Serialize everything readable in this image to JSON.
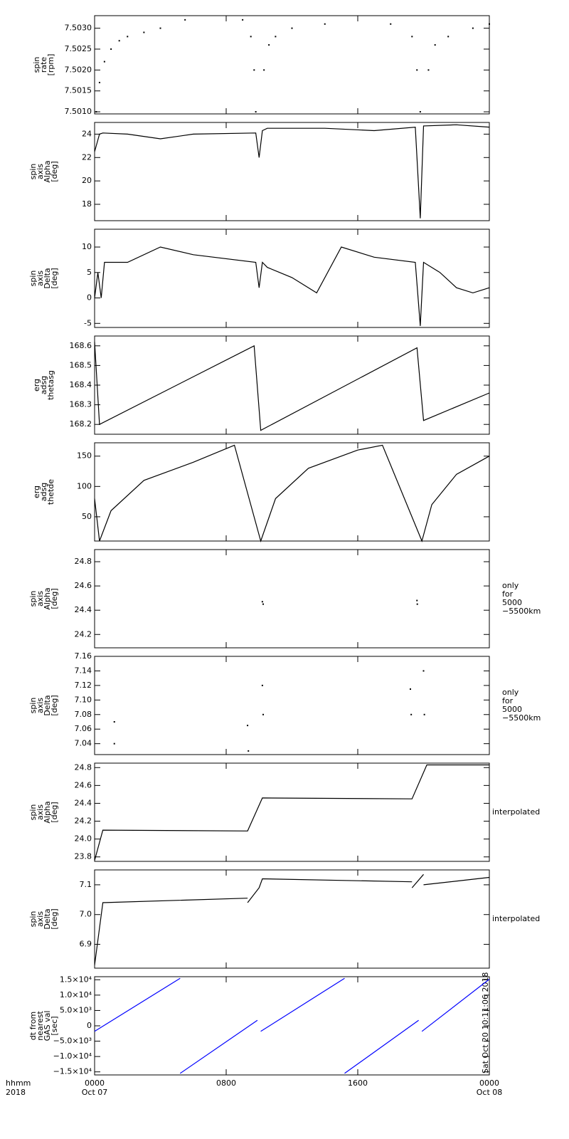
{
  "chart_data": [
    {
      "type": "scatter",
      "ylabel": [
        "spin",
        "rate",
        "[rpm]"
      ],
      "xlim": [
        0,
        24
      ],
      "xticks": [
        0,
        8,
        16,
        24
      ],
      "ylim": [
        7.50095,
        7.5033
      ],
      "yticks": [
        {
          "value": 7.501,
          "label": "7.5010"
        },
        {
          "value": 7.5015,
          "label": "7.5015"
        },
        {
          "value": 7.502,
          "label": "7.5020"
        },
        {
          "value": 7.5025,
          "label": "7.5025"
        },
        {
          "value": 7.503,
          "label": "7.5030"
        }
      ],
      "x": [
        0.1,
        0.3,
        0.6,
        1,
        1.5,
        2,
        3,
        4,
        5.5,
        9,
        9.5,
        9.7,
        9.8,
        10.3,
        10.6,
        11,
        12,
        14,
        18,
        19.3,
        19.6,
        19.8,
        20.3,
        20.7,
        21.5,
        23,
        24
      ],
      "series": [
        {
          "color": "#000000",
          "values": [
            7.501,
            7.5017,
            7.5022,
            7.5025,
            7.5027,
            7.5028,
            7.5029,
            7.503,
            7.5032,
            7.5032,
            7.5028,
            7.502,
            7.501,
            7.502,
            7.5026,
            7.5028,
            7.503,
            7.5031,
            7.5031,
            7.5028,
            7.502,
            7.501,
            7.502,
            7.5026,
            7.5028,
            7.503,
            7.5031
          ]
        }
      ]
    },
    {
      "type": "line",
      "ylabel": [
        "spin",
        "axis",
        "Alpha",
        "[deg]"
      ],
      "xlim": [
        0,
        24
      ],
      "xticks": [
        0,
        8,
        16,
        24
      ],
      "ylim": [
        16.6,
        25
      ],
      "yticks": [
        18,
        20,
        22,
        24
      ],
      "x": [
        0,
        0.3,
        0.5,
        2,
        4,
        6,
        9.8,
        10,
        10.2,
        10.5,
        14,
        17,
        19.5,
        19.8,
        20,
        22,
        24
      ],
      "series": [
        {
          "color": "#000000",
          "values": [
            22.5,
            24,
            24.1,
            24,
            23.6,
            24,
            24.1,
            22,
            24.3,
            24.5,
            24.5,
            24.3,
            24.6,
            16.8,
            24.7,
            24.8,
            24.6
          ]
        }
      ]
    },
    {
      "type": "line",
      "ylabel": [
        "spin",
        "axis",
        "Delta",
        "[deg]"
      ],
      "xlim": [
        0,
        24
      ],
      "xticks": [
        0,
        8,
        16,
        24
      ],
      "ylim": [
        -5.8,
        13.5
      ],
      "yticks": [
        -5,
        0,
        5,
        10
      ],
      "x": [
        0,
        0.2,
        0.4,
        0.6,
        2,
        4,
        6,
        9.8,
        10,
        10.2,
        10.5,
        12,
        13.5,
        15,
        17,
        19.5,
        19.8,
        20,
        21,
        22,
        23,
        24
      ],
      "series": [
        {
          "color": "#000000",
          "values": [
            0,
            5,
            0,
            7,
            7,
            10,
            8.5,
            7,
            2,
            7,
            6,
            4,
            1,
            10,
            8,
            7,
            -5.5,
            7,
            5,
            2,
            1,
            2
          ]
        }
      ]
    },
    {
      "type": "line",
      "ylabel": [
        "erg",
        "adsg",
        "thetasg"
      ],
      "xlim": [
        0,
        24
      ],
      "xticks": [
        0,
        8,
        16,
        24
      ],
      "ylim": [
        168.15,
        168.65
      ],
      "yticks": [
        168.2,
        168.3,
        168.4,
        168.5,
        168.6
      ],
      "x": [
        0,
        0.3,
        9.7,
        10.1,
        19.6,
        20,
        24
      ],
      "series": [
        {
          "color": "#000000",
          "values": [
            168.62,
            168.2,
            168.6,
            168.17,
            168.59,
            168.22,
            168.36
          ]
        }
      ]
    },
    {
      "type": "line",
      "ylabel": [
        "erg",
        "adsg",
        "thetde"
      ],
      "xlim": [
        0,
        24
      ],
      "xticks": [
        0,
        8,
        16,
        24
      ],
      "ylim": [
        10,
        172
      ],
      "yticks": [
        50,
        100,
        150
      ],
      "x": [
        0,
        0.3,
        1,
        3,
        6,
        8.5,
        10.1,
        11,
        13,
        16,
        17.5,
        19.9,
        20.5,
        22,
        24
      ],
      "series": [
        {
          "color": "#000000",
          "values": [
            80,
            10,
            60,
            110,
            140,
            168,
            10,
            80,
            130,
            160,
            168,
            10,
            70,
            120,
            150
          ]
        }
      ]
    },
    {
      "type": "scatter",
      "ylabel": [
        "spin",
        "axis",
        "Alpha",
        "[deg]"
      ],
      "xlim": [
        0,
        24
      ],
      "xticks": [
        0,
        8,
        16,
        24
      ],
      "ylim": [
        24.09,
        24.9
      ],
      "yticks": [
        24.2,
        24.4,
        24.6,
        24.8
      ],
      "note": [
        "only",
        "for",
        "5000",
        "−5500km"
      ],
      "x": [
        10.2,
        10.25,
        19.6,
        19.62
      ],
      "series": [
        {
          "color": "#000000",
          "values": [
            24.47,
            24.45,
            24.48,
            24.45
          ]
        }
      ]
    },
    {
      "type": "scatter",
      "ylabel": [
        "spin",
        "axis",
        "Delta",
        "[deg]"
      ],
      "xlim": [
        0,
        24
      ],
      "xticks": [
        0,
        8,
        16,
        24
      ],
      "ylim": [
        7.025,
        7.16
      ],
      "yticks": [
        7.04,
        7.06,
        7.08,
        {
          "value": 7.1,
          "label": "7.10"
        },
        7.12,
        7.14,
        7.16
      ],
      "note": [
        "only",
        "for",
        "5000",
        "−5500km"
      ],
      "x": [
        1.2,
        1.2,
        9.3,
        9.35,
        10.2,
        10.25,
        19.2,
        19.25,
        20,
        20.05
      ],
      "series": [
        {
          "color": "#000000",
          "values": [
            7.07,
            7.04,
            7.065,
            7.03,
            7.12,
            7.08,
            7.115,
            7.08,
            7.14,
            7.08
          ]
        }
      ]
    },
    {
      "type": "line",
      "ylabel": [
        "spin",
        "axis",
        "Alpha",
        "[deg]"
      ],
      "xlim": [
        0,
        24
      ],
      "xticks": [
        0,
        8,
        16,
        24
      ],
      "ylim": [
        23.75,
        24.85
      ],
      "yticks": [
        23.8,
        {
          "value": 24,
          "label": "24.0"
        },
        24.2,
        24.4,
        24.6,
        24.8
      ],
      "note": [
        "interpolated"
      ],
      "x": [
        0,
        0.5,
        9.3,
        10.2,
        19.3,
        20.2,
        24
      ],
      "series": [
        {
          "color": "#000000",
          "values": [
            23.76,
            24.1,
            24.09,
            24.46,
            24.45,
            24.83,
            24.83
          ]
        }
      ]
    },
    {
      "type": "line",
      "ylabel": [
        "spin",
        "axis",
        "Delta",
        "[deg]"
      ],
      "xlim": [
        0,
        24
      ],
      "xticks": [
        0,
        8,
        16,
        24
      ],
      "ylim": [
        6.82,
        7.15
      ],
      "yticks": [
        6.9,
        {
          "value": 7,
          "label": "7.0"
        },
        7.1
      ],
      "note": [
        "interpolated"
      ],
      "x": [
        0,
        0.5,
        9.3,
        9.3,
        9.3,
        10,
        10.2,
        19.3,
        19.3,
        19.3,
        20,
        20,
        20,
        24
      ],
      "series": [
        {
          "color": "#000000",
          "values": [
            6.83,
            7.04,
            7.055,
            null,
            7.04,
            7.09,
            7.12,
            7.11,
            null,
            7.09,
            7.135,
            null,
            7.1,
            7.125
          ]
        }
      ]
    },
    {
      "type": "line",
      "ylabel": [
        "dt from",
        "nearest",
        "GAS val",
        "[sec]"
      ],
      "xlim": [
        0,
        24
      ],
      "xticks": [
        {
          "value": 0,
          "label": "0000"
        },
        {
          "value": 8,
          "label": "0800"
        },
        {
          "value": 16,
          "label": "1600"
        },
        {
          "value": 24,
          "label": "0000"
        }
      ],
      "xdates": [
        {
          "value": 0,
          "label": "Oct 07"
        },
        {
          "value": 24,
          "label": "Oct 08"
        }
      ],
      "xaxis_label": "hhmm",
      "year_label": "2018",
      "timestamp": "Sat Oct 20 10:11:06 2018",
      "ylim": [
        -16000,
        16000
      ],
      "yticks": [
        {
          "value": -15000,
          "label": "−1.5×10⁴"
        },
        {
          "value": -10000,
          "label": "−1.0×10⁴"
        },
        {
          "value": -5000,
          "label": "−5.0×10³"
        },
        0,
        {
          "value": 5000,
          "label": "5.0×10³"
        },
        {
          "value": 10000,
          "label": "1.0×10⁴"
        },
        {
          "value": 15000,
          "label": "1.5×10⁴"
        }
      ],
      "x": [
        0,
        5.2,
        5.2,
        5.2,
        9.9,
        9.9,
        10.1,
        15.2,
        15.2,
        15.2,
        19.7,
        19.7,
        19.9,
        24
      ],
      "series": [
        {
          "color": "#0000ff",
          "values": [
            -1800,
            15500,
            null,
            -15500,
            1800,
            null,
            -1800,
            15500,
            null,
            -15500,
            1800,
            null,
            -1800,
            15200
          ]
        }
      ]
    }
  ]
}
